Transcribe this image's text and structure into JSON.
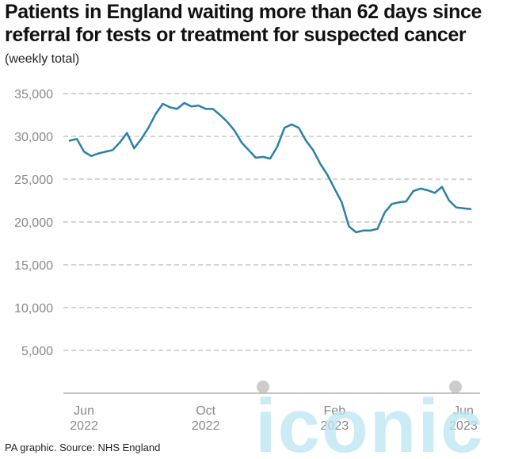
{
  "title": "Patients in England waiting more than 62 days since referral for tests or treatment for suspected cancer",
  "subtitle": "(weekly total)",
  "footer": "PA graphic. Source: NHS England",
  "watermark_text": "iconic",
  "colors": {
    "line": "#2a7fa8",
    "grid": "#aaaaaa",
    "axis": "#888888",
    "tick_text": "#888888",
    "watermark": "#b9e4f2"
  },
  "chart_data": {
    "type": "line",
    "title": "Patients in England waiting more than 62 days since referral for tests or treatment for suspected cancer",
    "ylabel": "(weekly total)",
    "ylim": [
      0,
      35000
    ],
    "yticks": [
      5000,
      10000,
      15000,
      20000,
      25000,
      30000,
      35000
    ],
    "ytick_labels": [
      "5,000",
      "10,000",
      "15,000",
      "20,000",
      "25,000",
      "30,000",
      "35,000"
    ],
    "xticks": [
      {
        "week_index": 2,
        "line1": "Jun",
        "line2": "2022"
      },
      {
        "week_index": 19,
        "line1": "Oct",
        "line2": "2022"
      },
      {
        "week_index": 37,
        "line1": "Feb",
        "line2": "2023"
      },
      {
        "week_index": 55,
        "line1": "Jun",
        "line2": "2023"
      }
    ],
    "grid": true,
    "series": [
      {
        "values": [
          29500,
          29700,
          28200,
          27700,
          28000,
          28200,
          28400,
          29300,
          30400,
          28600,
          29700,
          31000,
          32600,
          33800,
          33400,
          33200,
          33900,
          33500,
          33600,
          33200,
          33200,
          32500,
          31700,
          30700,
          29300,
          28400,
          27500,
          27600,
          27400,
          28800,
          31000,
          31400,
          31000,
          29500,
          28400,
          26800,
          25500,
          23900,
          22300,
          19500,
          18800,
          19000,
          19000,
          19200,
          21100,
          22100,
          22300,
          22400,
          23600,
          23900,
          23700,
          23400,
          24100,
          22500,
          21700,
          21600,
          21500
        ]
      }
    ]
  }
}
